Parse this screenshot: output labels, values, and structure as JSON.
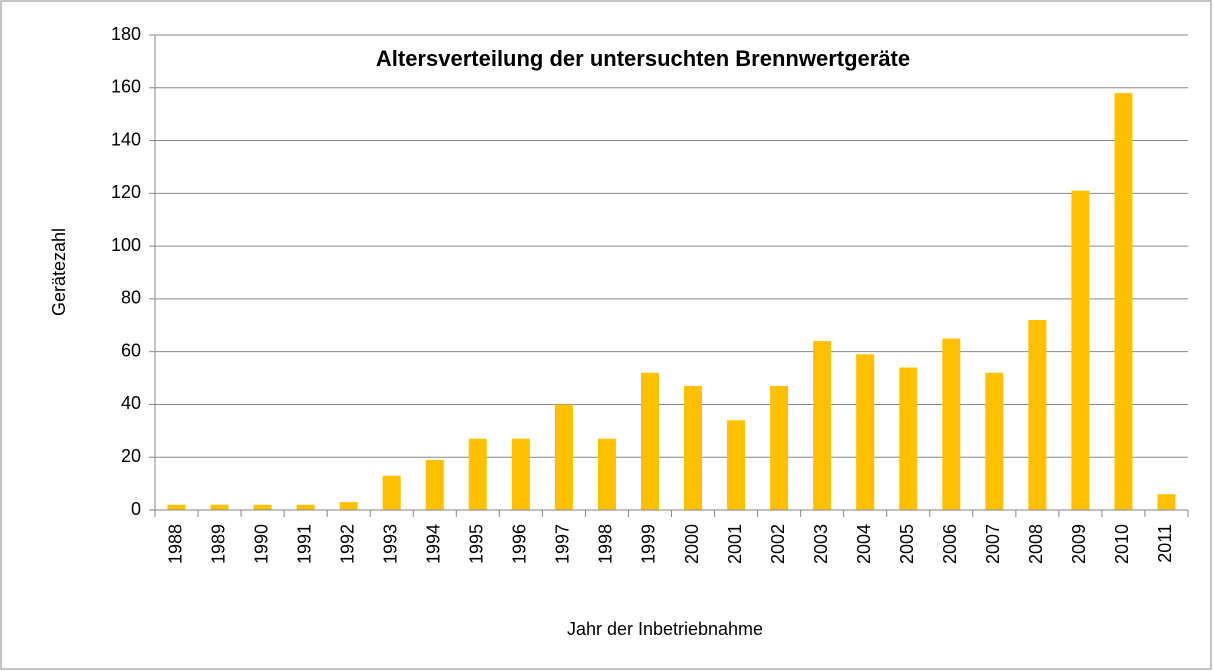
{
  "chart_data": {
    "type": "bar",
    "title": "Altersverteilung der untersuchten Brennwertgeräte",
    "x_label": "Jahr der Inbetriebnahme",
    "y_label": "Gerätezahl",
    "categories": [
      "1988",
      "1989",
      "1990",
      "1991",
      "1992",
      "1993",
      "1994",
      "1995",
      "1996",
      "1997",
      "1998",
      "1999",
      "2000",
      "2001",
      "2002",
      "2003",
      "2004",
      "2005",
      "2006",
      "2007",
      "2008",
      "2009",
      "2010",
      "2011"
    ],
    "values": [
      2,
      2,
      2,
      2,
      3,
      13,
      19,
      27,
      27,
      40,
      27,
      52,
      47,
      34,
      47,
      64,
      59,
      54,
      65,
      52,
      72,
      121,
      158,
      6
    ],
    "color": "#ffc000",
    "ylim": [
      0,
      180
    ],
    "yticks": [
      0,
      20,
      40,
      60,
      80,
      100,
      120,
      140,
      160,
      180
    ],
    "grid": true
  }
}
